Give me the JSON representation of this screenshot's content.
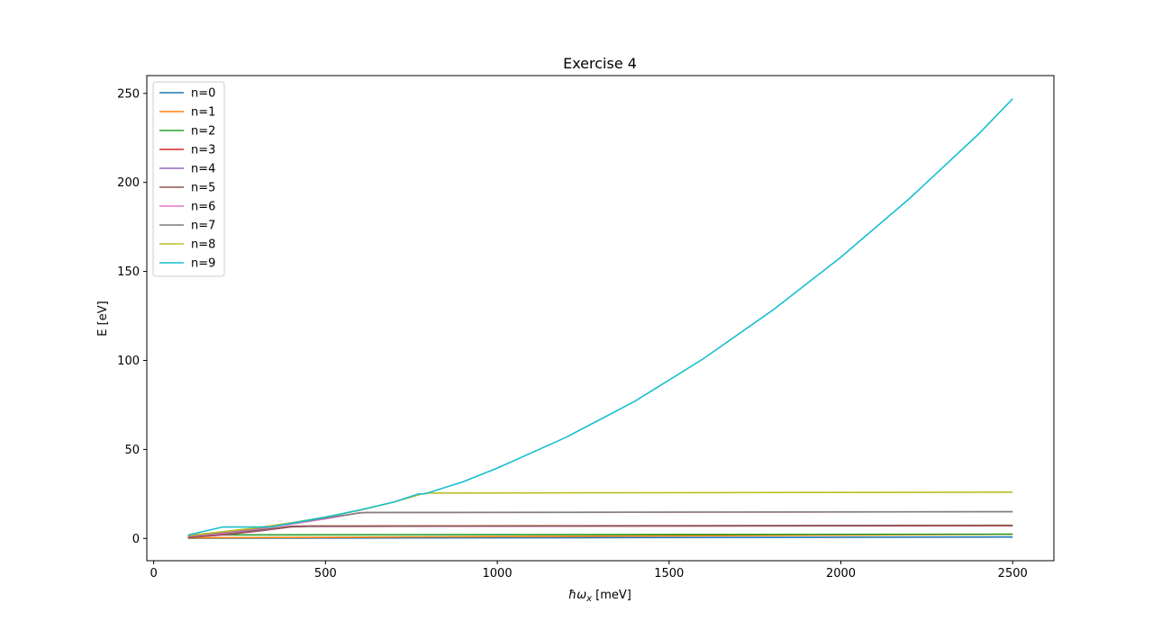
{
  "chart_data": {
    "type": "line",
    "title": "Exercise 4",
    "xlabel_main": "ħω",
    "xlabel_sub": "x",
    "xlabel_unit": " [meV]",
    "ylabel": "E [eV]",
    "xlim": [
      -20,
      2620
    ],
    "ylim": [
      -12.5,
      260
    ],
    "xticks": [
      0,
      500,
      1000,
      1500,
      2000,
      2500
    ],
    "yticks": [
      0,
      50,
      100,
      150,
      200,
      250
    ],
    "legend_position": "upper-left",
    "grid": false,
    "series": [
      {
        "name": "n=0",
        "color": "#1f77b4",
        "x": [
          100,
          2500
        ],
        "y": [
          0.1,
          0.8
        ]
      },
      {
        "name": "n=1",
        "color": "#ff7f0e",
        "x": [
          100,
          2500
        ],
        "y": [
          0.3,
          2.3
        ]
      },
      {
        "name": "n=2",
        "color": "#2ca02c",
        "x": [
          100,
          200,
          2500
        ],
        "y": [
          0.5,
          2.0,
          2.4
        ]
      },
      {
        "name": "n=3",
        "color": "#d62728",
        "x": [
          100,
          200,
          300,
          400,
          450,
          2500
        ],
        "y": [
          0.7,
          2.0,
          4.0,
          6.5,
          6.8,
          7.2
        ]
      },
      {
        "name": "n=4",
        "color": "#9467bd",
        "x": [
          100,
          200,
          300,
          400,
          450,
          2500
        ],
        "y": [
          0.9,
          2.3,
          4.2,
          6.6,
          6.8,
          7.3
        ]
      },
      {
        "name": "n=5",
        "color": "#8c564b",
        "x": [
          100,
          200,
          300,
          400,
          460,
          2500
        ],
        "y": [
          1.1,
          2.6,
          4.5,
          6.8,
          7.0,
          7.4
        ]
      },
      {
        "name": "n=6",
        "color": "#e377c2",
        "x": [
          100,
          200,
          300,
          400,
          500,
          600,
          2500
        ],
        "y": [
          1.3,
          3.0,
          5.2,
          8.0,
          11.0,
          14.5,
          15.0
        ]
      },
      {
        "name": "n=7",
        "color": "#7f7f7f",
        "x": [
          100,
          200,
          300,
          400,
          500,
          600,
          620,
          2500
        ],
        "y": [
          1.5,
          3.5,
          5.6,
          8.5,
          11.5,
          14.3,
          14.6,
          15.0
        ]
      },
      {
        "name": "n=8",
        "color": "#bcbd22",
        "x": [
          100,
          200,
          300,
          400,
          500,
          600,
          700,
          780,
          800,
          2500
        ],
        "y": [
          1.7,
          3.8,
          6.0,
          8.8,
          12.0,
          15.8,
          20.5,
          25.0,
          25.5,
          26.0
        ]
      },
      {
        "name": "n=9",
        "color": "#17becf",
        "x": [
          100,
          200,
          340,
          400,
          500,
          600,
          700,
          770,
          790,
          900,
          1000,
          1200,
          1400,
          1600,
          1800,
          2000,
          2200,
          2400,
          2500
        ],
        "y": [
          1.9,
          6.4,
          6.5,
          8.5,
          12.0,
          16.0,
          20.5,
          25.0,
          25.1,
          31.8,
          39.5,
          56.8,
          77.0,
          101.0,
          128.0,
          158.0,
          191.0,
          227.0,
          247.0
        ]
      }
    ]
  }
}
